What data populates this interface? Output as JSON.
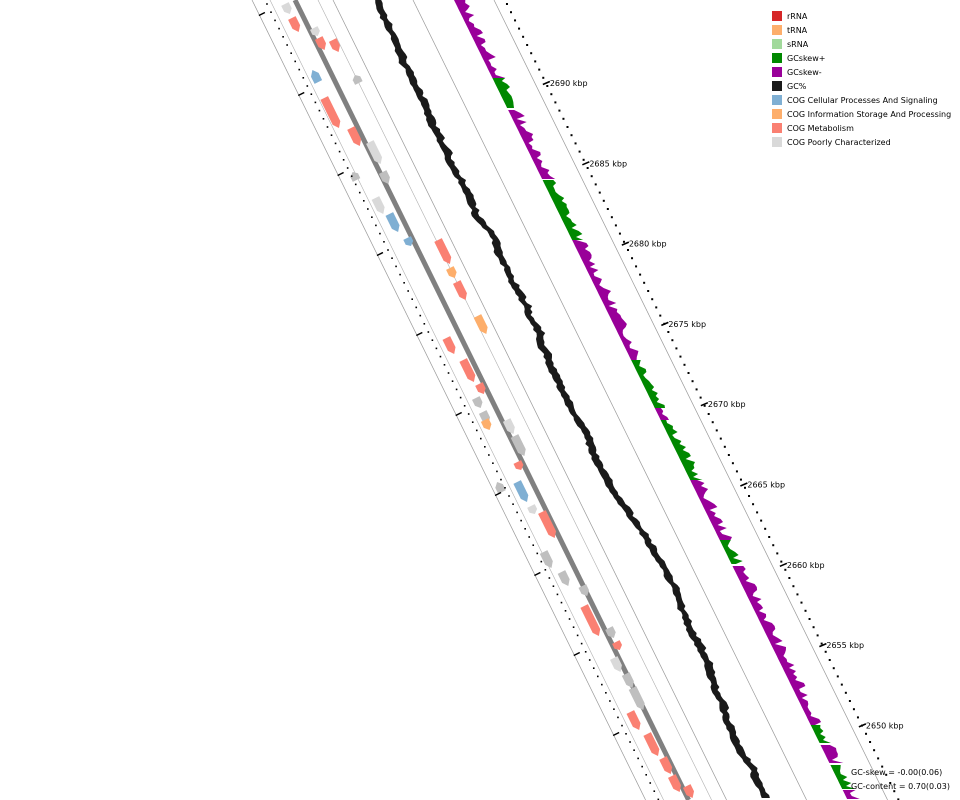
{
  "legend": {
    "items": [
      {
        "label": "rRNA",
        "color": "#d62728"
      },
      {
        "label": "tRNA",
        "color": "#fdae6b"
      },
      {
        "label": "sRNA",
        "color": "#a1d99b"
      },
      {
        "label": "GCskew+",
        "color": "#008800"
      },
      {
        "label": "GCskew-",
        "color": "#990099"
      },
      {
        "label": "GC%",
        "color": "#1a1a1a"
      },
      {
        "label": "COG Cellular Processes And Signaling",
        "color": "#7fafd3"
      },
      {
        "label": "COG Information Storage And Processing",
        "color": "#fdae6b"
      },
      {
        "label": "COG Metabolism",
        "color": "#fa8072"
      },
      {
        "label": "COG Poorly Characterized",
        "color": "#d9d9d9"
      }
    ]
  },
  "scale": {
    "unit": "kbp",
    "ticks": [
      {
        "value": 2690,
        "label": "2690 kbp"
      },
      {
        "value": 2685,
        "label": "2685 kbp"
      },
      {
        "value": 2680,
        "label": "2680 kbp"
      },
      {
        "value": 2675,
        "label": "2675 kbp"
      },
      {
        "value": 2670,
        "label": "2670 kbp"
      },
      {
        "value": 2665,
        "label": "2665 kbp"
      },
      {
        "value": 2660,
        "label": "2660 kbp"
      },
      {
        "value": 2655,
        "label": "2655 kbp"
      },
      {
        "value": 2650,
        "label": "2650 kbp"
      }
    ]
  },
  "stats": {
    "gc_skew": "GC-skew = -0.00(0.06)",
    "gc_content": "GC-content = 0.70(0.03)"
  },
  "colors": {
    "backbone": "#808080",
    "track_line": "#999999",
    "gc_content": "#1a1a1a",
    "gc_skew_pos": "#008800",
    "gc_skew_neg": "#990099"
  }
}
